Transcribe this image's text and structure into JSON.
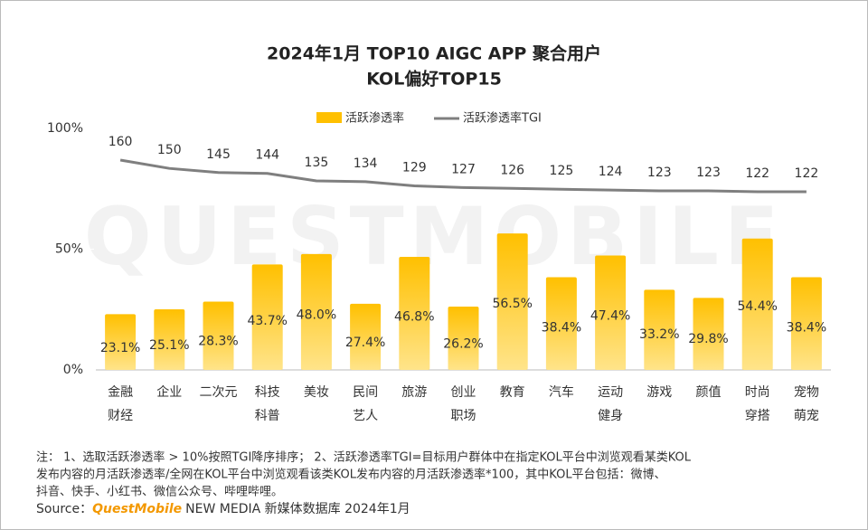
{
  "chart_data": {
    "type": "bar-line",
    "title": [
      "2024年1月 TOP10 AIGC APP 聚合用户",
      "KOL偏好TOP15"
    ],
    "watermark": "QUESTMOBILE",
    "categories": [
      [
        "金融",
        "财经"
      ],
      [
        "企业"
      ],
      [
        "二次元"
      ],
      [
        "科技",
        "科普"
      ],
      [
        "美妆"
      ],
      [
        "民间",
        "艺人"
      ],
      [
        "旅游"
      ],
      [
        "创业",
        "职场"
      ],
      [
        "教育"
      ],
      [
        "汽车"
      ],
      [
        "运动",
        "健身"
      ],
      [
        "游戏"
      ],
      [
        "颜值"
      ],
      [
        "时尚",
        "穿搭"
      ],
      [
        "宠物",
        "萌宠"
      ]
    ],
    "series": [
      {
        "name": "活跃渗透率",
        "color": "#ffc000",
        "values": [
          23.1,
          25.1,
          28.3,
          43.7,
          48.0,
          27.4,
          46.8,
          26.2,
          56.5,
          38.4,
          47.4,
          33.2,
          29.8,
          54.4,
          38.4
        ],
        "value_labels": [
          "23.1%",
          "25.1%",
          "28.3%",
          "43.7%",
          "48.0%",
          "27.4%",
          "46.8%",
          "26.2%",
          "56.5%",
          "38.4%",
          "47.4%",
          "33.2%",
          "29.8%",
          "54.4%",
          "38.4%"
        ]
      },
      {
        "name": "活跃渗透率TGI",
        "color": "#7f7f7f",
        "axis": "y2",
        "values": [
          160,
          150,
          145,
          144,
          135,
          134,
          129,
          127,
          126,
          125,
          124,
          123,
          123,
          122,
          122
        ]
      }
    ],
    "ylim": [
      0,
      100
    ],
    "yticks": [
      {
        "value": 0,
        "label": "0%"
      },
      {
        "value": 50,
        "label": "50%"
      },
      {
        "value": 100,
        "label": "100%"
      }
    ],
    "y2lim": [
      -92,
      198
    ],
    "notes": [
      "注： 1、选取活跃渗透率 > 10%按照TGI降序排序； 2、活跃渗透率TGI=目标用户群体中在指定KOL平台中浏览观看某类KOL",
      "发布内容的月活跃渗透率/全网在KOL平台中浏览观看该类KOL发布内容的月活跃渗透率*100，其中KOL平台包括：微博、",
      "抖音、快手、小红书、微信公众号、哔哩哔哩。"
    ],
    "source": {
      "label": "Source：",
      "brand": "QuestMobile",
      "text": "NEW MEDIA 新媒体数据库 2024年1月"
    }
  }
}
